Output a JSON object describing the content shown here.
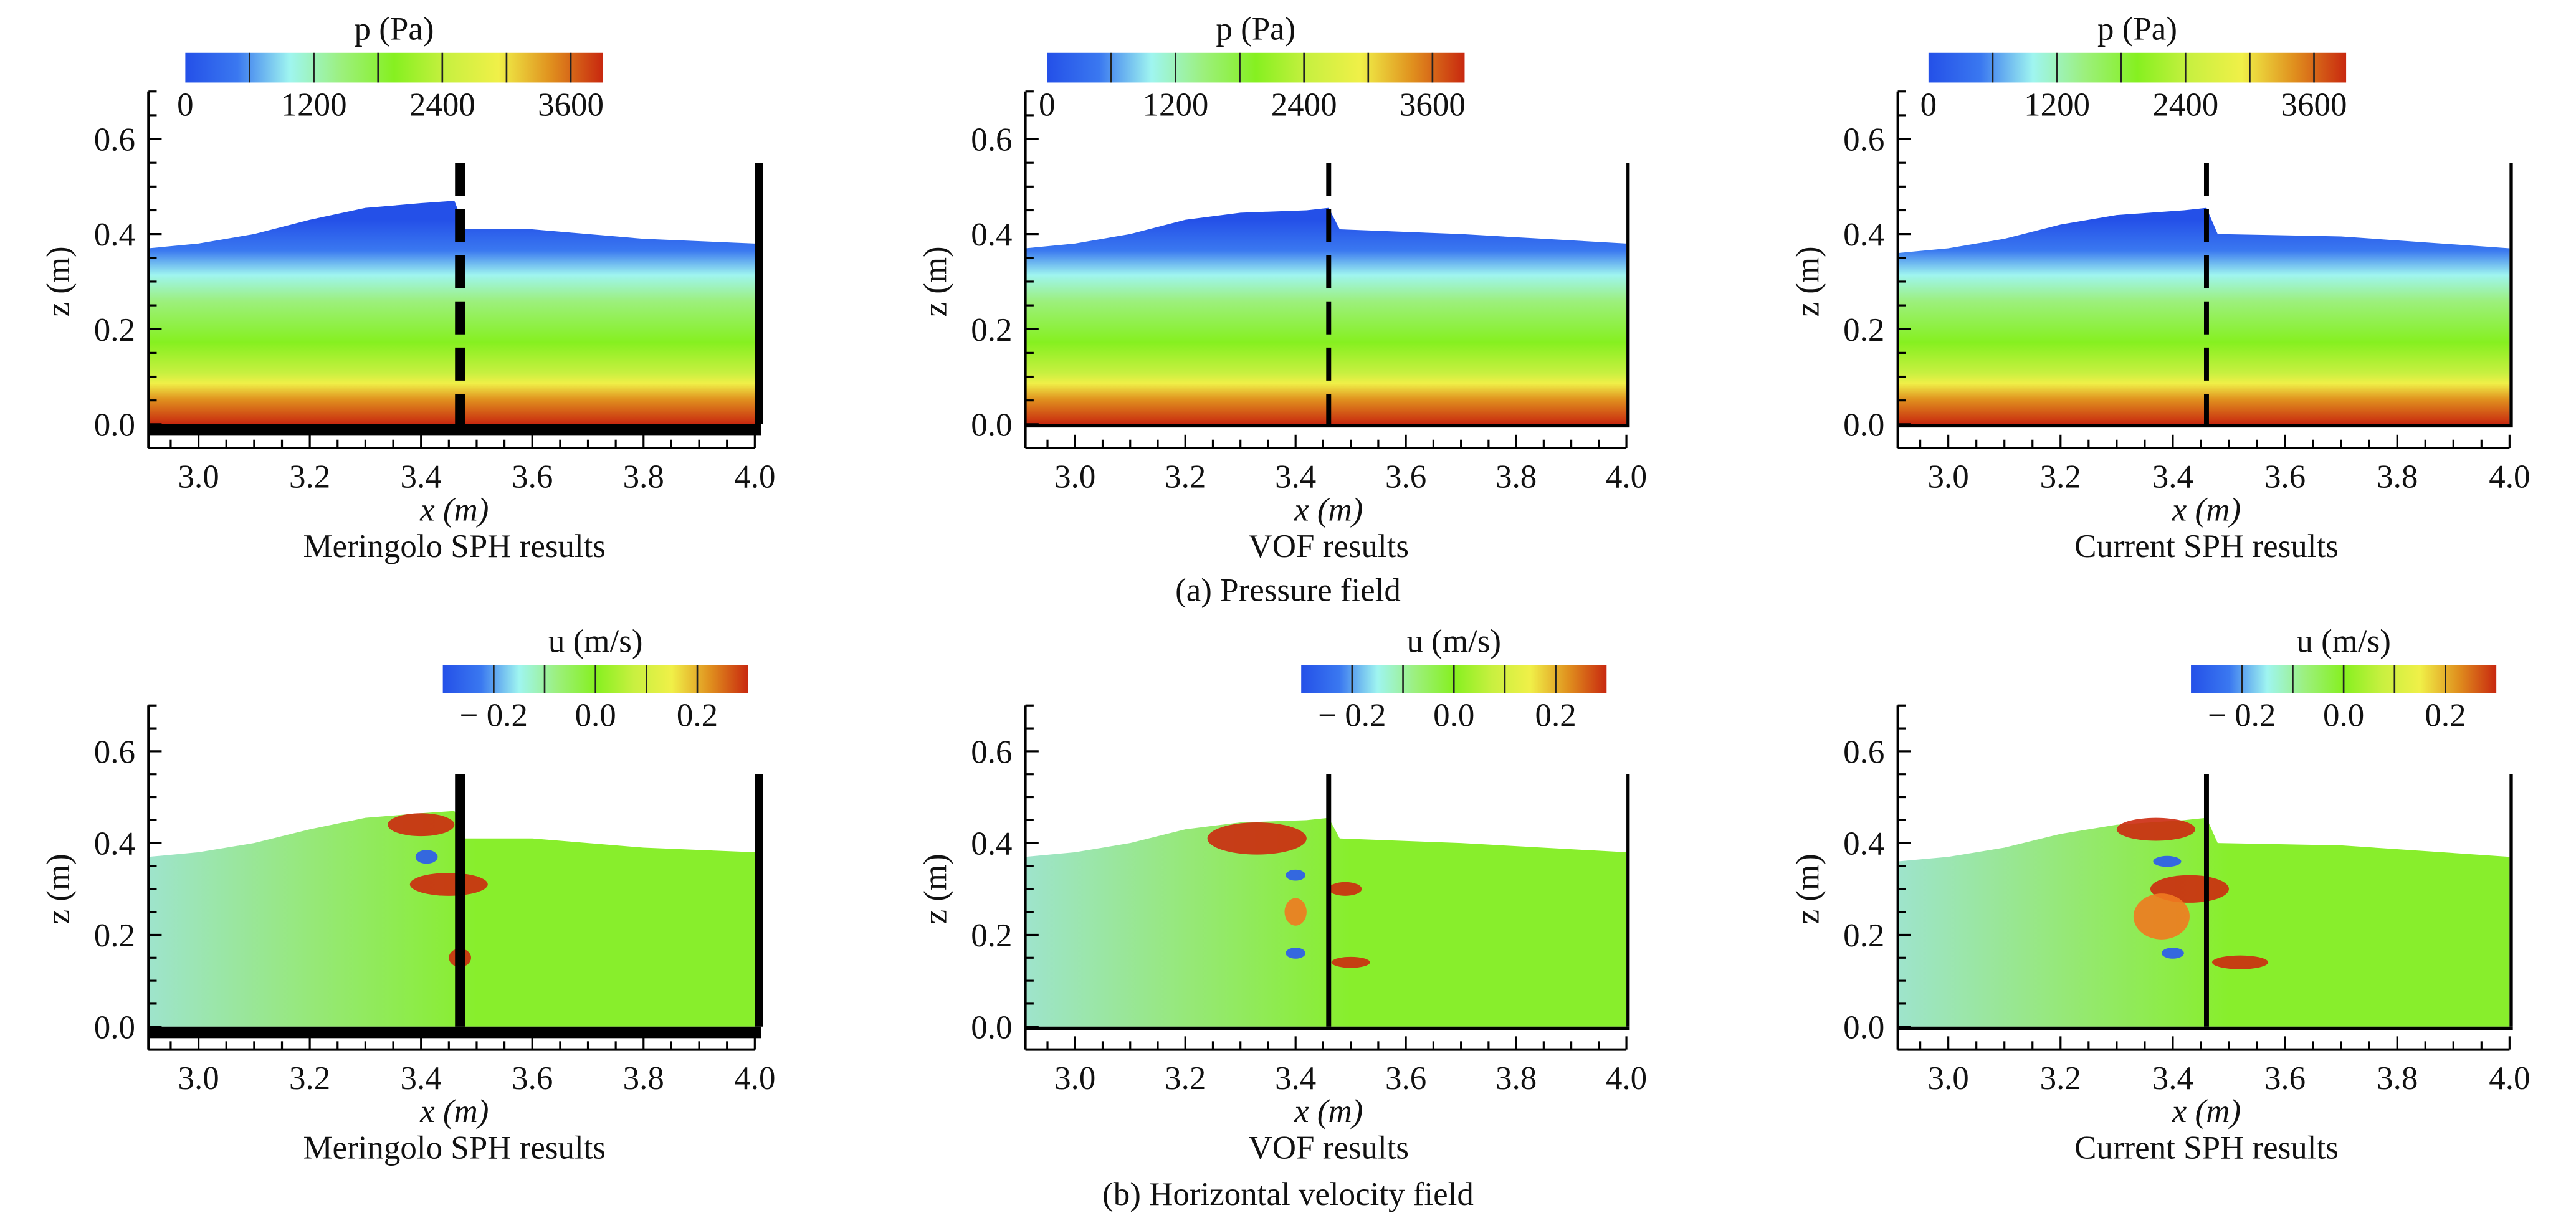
{
  "row_captions": [
    "(a) Pressure field",
    "(b) Horizontal velocity field"
  ],
  "colormap": [
    "#2450e8",
    "#3a78f0",
    "#9ff5f0",
    "#9cf07c",
    "#86f020",
    "#c8f040",
    "#f0f048",
    "#e0901e",
    "#c8280f"
  ],
  "chart_data": [
    {
      "type": "heatmap",
      "row": 0,
      "col": 0,
      "field": "pressure",
      "caption": "Meringolo SPH results",
      "xlabel": "x (m)",
      "ylabel": "z (m)",
      "xlim": [
        2.91,
        4.0
      ],
      "ylim": [
        -0.05,
        0.7
      ],
      "xticks": [
        "3.0",
        "3.2",
        "3.4",
        "3.6",
        "3.8",
        "4.0"
      ],
      "yticks": [
        "0.0",
        "0.2",
        "0.4",
        "0.6"
      ],
      "colorbar": {
        "title": "p (Pa)",
        "range": [
          0,
          3900
        ],
        "ticks": [
          "0",
          "1200",
          "2400",
          "3600"
        ],
        "step": 600
      },
      "surface_left": [
        [
          2.91,
          0.37
        ],
        [
          3.0,
          0.38
        ],
        [
          3.1,
          0.4
        ],
        [
          3.2,
          0.43
        ],
        [
          3.3,
          0.455
        ],
        [
          3.4,
          0.465
        ],
        [
          3.46,
          0.47
        ]
      ],
      "surface_right": [
        [
          3.48,
          0.41
        ],
        [
          3.6,
          0.41
        ],
        [
          3.8,
          0.39
        ],
        [
          4.0,
          0.38
        ]
      ],
      "barrier_x": 3.47,
      "barrier_style": "dashed",
      "walls": "thick",
      "blobs": []
    },
    {
      "type": "heatmap",
      "row": 0,
      "col": 1,
      "field": "pressure",
      "caption": "VOF results",
      "xlabel": "x (m)",
      "ylabel": "z (m)",
      "xlim": [
        2.91,
        4.0
      ],
      "ylim": [
        -0.05,
        0.7
      ],
      "xticks": [
        "3.0",
        "3.2",
        "3.4",
        "3.6",
        "3.8",
        "4.0"
      ],
      "yticks": [
        "0.0",
        "0.2",
        "0.4",
        "0.6"
      ],
      "colorbar": {
        "title": "p (Pa)",
        "range": [
          0,
          3900
        ],
        "ticks": [
          "0",
          "1200",
          "2400",
          "3600"
        ],
        "step": 600
      },
      "surface_left": [
        [
          2.91,
          0.37
        ],
        [
          3.0,
          0.38
        ],
        [
          3.1,
          0.4
        ],
        [
          3.2,
          0.43
        ],
        [
          3.3,
          0.445
        ],
        [
          3.42,
          0.45
        ],
        [
          3.46,
          0.455
        ]
      ],
      "surface_right": [
        [
          3.48,
          0.41
        ],
        [
          3.7,
          0.4
        ],
        [
          4.0,
          0.38
        ]
      ],
      "barrier_x": 3.46,
      "barrier_style": "dashed",
      "walls": "thin",
      "blobs": []
    },
    {
      "type": "heatmap",
      "row": 0,
      "col": 2,
      "field": "pressure",
      "caption": "Current SPH results",
      "xlabel": "x (m)",
      "ylabel": "z (m)",
      "xlim": [
        2.91,
        4.0
      ],
      "ylim": [
        -0.05,
        0.7
      ],
      "xticks": [
        "3.0",
        "3.2",
        "3.4",
        "3.6",
        "3.8",
        "4.0"
      ],
      "yticks": [
        "0.0",
        "0.2",
        "0.4",
        "0.6"
      ],
      "colorbar": {
        "title": "p (Pa)",
        "range": [
          0,
          3900
        ],
        "ticks": [
          "0",
          "1200",
          "2400",
          "3600"
        ],
        "step": 600
      },
      "surface_left": [
        [
          2.91,
          0.36
        ],
        [
          3.0,
          0.37
        ],
        [
          3.1,
          0.39
        ],
        [
          3.2,
          0.42
        ],
        [
          3.3,
          0.44
        ],
        [
          3.42,
          0.45
        ],
        [
          3.46,
          0.455
        ]
      ],
      "surface_right": [
        [
          3.48,
          0.4
        ],
        [
          3.7,
          0.395
        ],
        [
          4.0,
          0.37
        ]
      ],
      "barrier_x": 3.46,
      "barrier_style": "dashed",
      "walls": "thin",
      "blobs": []
    },
    {
      "type": "heatmap",
      "row": 1,
      "col": 0,
      "field": "velocity",
      "caption": "Meringolo SPH results",
      "xlabel": "x (m)",
      "ylabel": "z (m)",
      "xlim": [
        2.91,
        4.0
      ],
      "ylim": [
        -0.05,
        0.7
      ],
      "xticks": [
        "3.0",
        "3.2",
        "3.4",
        "3.6",
        "3.8",
        "4.0"
      ],
      "yticks": [
        "0.0",
        "0.2",
        "0.4",
        "0.6"
      ],
      "colorbar": {
        "title": "u (m/s)",
        "range": [
          -0.3,
          0.3
        ],
        "ticks": [
          "− 0.2",
          "0.0",
          "0.2"
        ],
        "step": 0.1
      },
      "surface_left": [
        [
          2.91,
          0.37
        ],
        [
          3.0,
          0.38
        ],
        [
          3.1,
          0.4
        ],
        [
          3.2,
          0.43
        ],
        [
          3.3,
          0.455
        ],
        [
          3.4,
          0.465
        ],
        [
          3.46,
          0.47
        ]
      ],
      "surface_right": [
        [
          3.48,
          0.41
        ],
        [
          3.6,
          0.41
        ],
        [
          3.8,
          0.39
        ],
        [
          4.0,
          0.38
        ]
      ],
      "barrier_x": 3.47,
      "barrier_style": "solid",
      "walls": "thick",
      "blobs": [
        {
          "x": 3.4,
          "z": 0.44,
          "rx": 0.06,
          "rz": 0.025,
          "u": 0.3
        },
        {
          "x": 3.41,
          "z": 0.37,
          "rx": 0.02,
          "rz": 0.015,
          "u": -0.25
        },
        {
          "x": 3.45,
          "z": 0.31,
          "rx": 0.07,
          "rz": 0.025,
          "u": 0.3
        },
        {
          "x": 3.47,
          "z": 0.15,
          "rx": 0.02,
          "rz": 0.02,
          "u": 0.25
        }
      ]
    },
    {
      "type": "heatmap",
      "row": 1,
      "col": 1,
      "field": "velocity",
      "caption": "VOF results",
      "xlabel": "x (m)",
      "ylabel": "z (m)",
      "xlim": [
        2.91,
        4.0
      ],
      "ylim": [
        -0.05,
        0.7
      ],
      "xticks": [
        "3.0",
        "3.2",
        "3.4",
        "3.6",
        "3.8",
        "4.0"
      ],
      "yticks": [
        "0.0",
        "0.2",
        "0.4",
        "0.6"
      ],
      "colorbar": {
        "title": "u (m/s)",
        "range": [
          -0.3,
          0.3
        ],
        "ticks": [
          "− 0.2",
          "0.0",
          "0.2"
        ],
        "step": 0.1
      },
      "surface_left": [
        [
          2.91,
          0.37
        ],
        [
          3.0,
          0.38
        ],
        [
          3.1,
          0.4
        ],
        [
          3.2,
          0.43
        ],
        [
          3.3,
          0.445
        ],
        [
          3.42,
          0.45
        ],
        [
          3.46,
          0.455
        ]
      ],
      "surface_right": [
        [
          3.48,
          0.41
        ],
        [
          3.7,
          0.4
        ],
        [
          4.0,
          0.38
        ]
      ],
      "barrier_x": 3.46,
      "barrier_style": "solid",
      "walls": "thin",
      "blobs": [
        {
          "x": 3.33,
          "z": 0.41,
          "rx": 0.09,
          "rz": 0.035,
          "u": 0.3
        },
        {
          "x": 3.4,
          "z": 0.33,
          "rx": 0.018,
          "rz": 0.012,
          "u": -0.2
        },
        {
          "x": 3.4,
          "z": 0.25,
          "rx": 0.02,
          "rz": 0.03,
          "u": 0.2
        },
        {
          "x": 3.4,
          "z": 0.16,
          "rx": 0.018,
          "rz": 0.012,
          "u": -0.2
        },
        {
          "x": 3.49,
          "z": 0.3,
          "rx": 0.03,
          "rz": 0.015,
          "u": 0.3
        },
        {
          "x": 3.5,
          "z": 0.14,
          "rx": 0.035,
          "rz": 0.012,
          "u": 0.3
        }
      ]
    },
    {
      "type": "heatmap",
      "row": 1,
      "col": 2,
      "field": "velocity",
      "caption": "Current SPH results",
      "xlabel": "x (m)",
      "ylabel": "z (m)",
      "xlim": [
        2.91,
        4.0
      ],
      "ylim": [
        -0.05,
        0.7
      ],
      "xticks": [
        "3.0",
        "3.2",
        "3.4",
        "3.6",
        "3.8",
        "4.0"
      ],
      "yticks": [
        "0.0",
        "0.2",
        "0.4",
        "0.6"
      ],
      "colorbar": {
        "title": "u (m/s)",
        "range": [
          -0.3,
          0.3
        ],
        "ticks": [
          "− 0.2",
          "0.0",
          "0.2"
        ],
        "step": 0.1
      },
      "surface_left": [
        [
          2.91,
          0.36
        ],
        [
          3.0,
          0.37
        ],
        [
          3.1,
          0.39
        ],
        [
          3.2,
          0.42
        ],
        [
          3.3,
          0.44
        ],
        [
          3.42,
          0.45
        ],
        [
          3.46,
          0.455
        ]
      ],
      "surface_right": [
        [
          3.48,
          0.4
        ],
        [
          3.7,
          0.395
        ],
        [
          4.0,
          0.37
        ]
      ],
      "barrier_x": 3.46,
      "barrier_style": "solid",
      "walls": "thin",
      "blobs": [
        {
          "x": 3.37,
          "z": 0.43,
          "rx": 0.07,
          "rz": 0.025,
          "u": 0.3
        },
        {
          "x": 3.39,
          "z": 0.36,
          "rx": 0.025,
          "rz": 0.012,
          "u": -0.25
        },
        {
          "x": 3.43,
          "z": 0.3,
          "rx": 0.07,
          "rz": 0.03,
          "u": 0.3
        },
        {
          "x": 3.38,
          "z": 0.24,
          "rx": 0.05,
          "rz": 0.05,
          "u": 0.2
        },
        {
          "x": 3.4,
          "z": 0.16,
          "rx": 0.02,
          "rz": 0.012,
          "u": -0.25
        },
        {
          "x": 3.52,
          "z": 0.14,
          "rx": 0.05,
          "rz": 0.015,
          "u": 0.3
        }
      ]
    }
  ]
}
